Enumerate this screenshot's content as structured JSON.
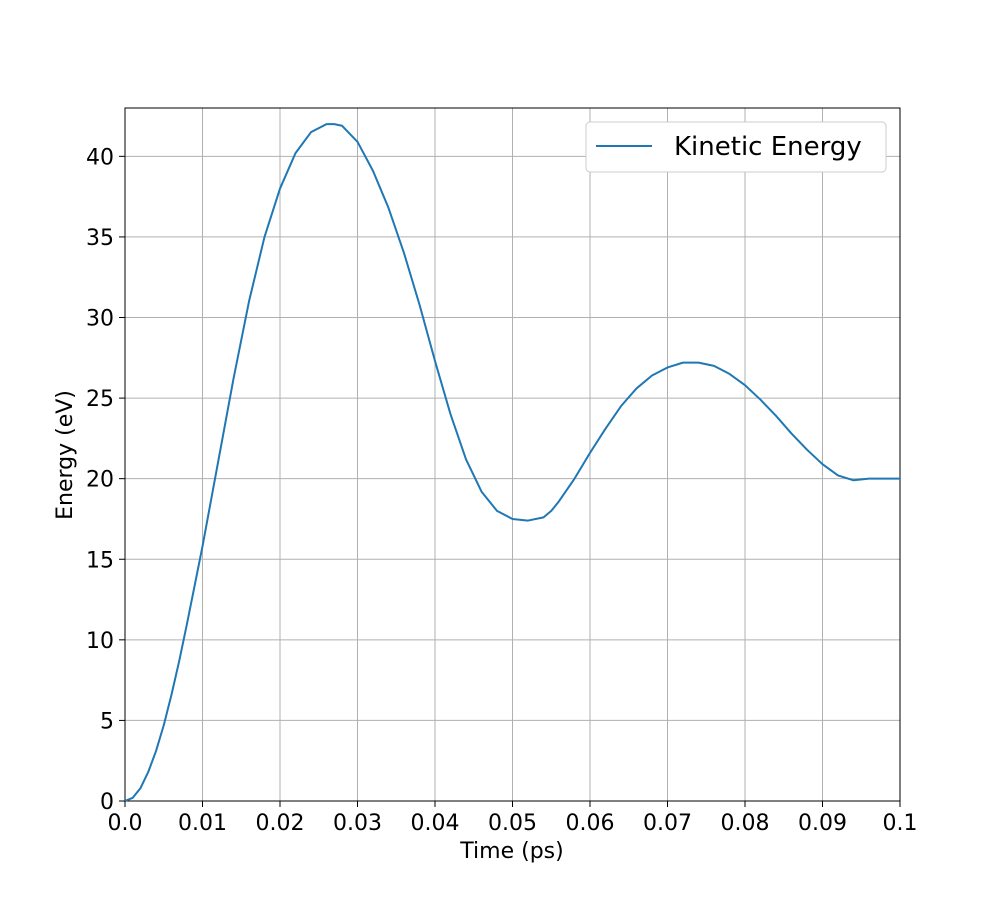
{
  "chart_data": {
    "type": "line",
    "title": "",
    "xlabel": "Time (ps)",
    "ylabel": "Energy (eV)",
    "xlim": [
      0.0,
      0.1
    ],
    "ylim": [
      0,
      43
    ],
    "xticks": [
      0.0,
      0.01,
      0.02,
      0.03,
      0.04,
      0.05,
      0.06,
      0.07,
      0.08,
      0.09,
      0.1
    ],
    "xtick_labels": [
      "0.0",
      "0.01",
      "0.02",
      "0.03",
      "0.04",
      "0.05",
      "0.06",
      "0.07",
      "0.08",
      "0.09",
      "0.1"
    ],
    "yticks": [
      0,
      5,
      10,
      15,
      20,
      25,
      30,
      35,
      40
    ],
    "ytick_labels": [
      "0",
      "5",
      "10",
      "15",
      "20",
      "25",
      "30",
      "35",
      "40"
    ],
    "grid": true,
    "legend_position": "top-right",
    "series": [
      {
        "name": "Kinetic Energy",
        "color": "#1f77b4",
        "x": [
          0.0,
          0.001,
          0.002,
          0.003,
          0.004,
          0.005,
          0.006,
          0.007,
          0.008,
          0.009,
          0.01,
          0.012,
          0.014,
          0.016,
          0.018,
          0.02,
          0.022,
          0.024,
          0.026,
          0.027,
          0.028,
          0.03,
          0.032,
          0.034,
          0.036,
          0.038,
          0.04,
          0.042,
          0.044,
          0.046,
          0.048,
          0.05,
          0.052,
          0.054,
          0.055,
          0.056,
          0.058,
          0.06,
          0.062,
          0.064,
          0.066,
          0.068,
          0.07,
          0.072,
          0.074,
          0.076,
          0.078,
          0.08,
          0.082,
          0.084,
          0.086,
          0.088,
          0.09,
          0.092,
          0.094,
          0.096,
          0.098,
          0.1
        ],
        "y": [
          0.0,
          0.2,
          0.8,
          1.8,
          3.1,
          4.7,
          6.6,
          8.7,
          11.0,
          13.4,
          15.8,
          21.0,
          26.2,
          31.0,
          35.0,
          38.0,
          40.2,
          41.5,
          42.0,
          42.0,
          41.9,
          40.9,
          39.1,
          36.8,
          34.0,
          30.8,
          27.3,
          24.0,
          21.2,
          19.2,
          18.0,
          17.5,
          17.4,
          17.6,
          18.0,
          18.6,
          20.0,
          21.6,
          23.1,
          24.5,
          25.6,
          26.4,
          26.9,
          27.2,
          27.2,
          27.0,
          26.5,
          25.8,
          24.9,
          23.9,
          22.8,
          21.8,
          20.9,
          20.2,
          19.9,
          20.0,
          20.0,
          20.0
        ]
      }
    ]
  }
}
